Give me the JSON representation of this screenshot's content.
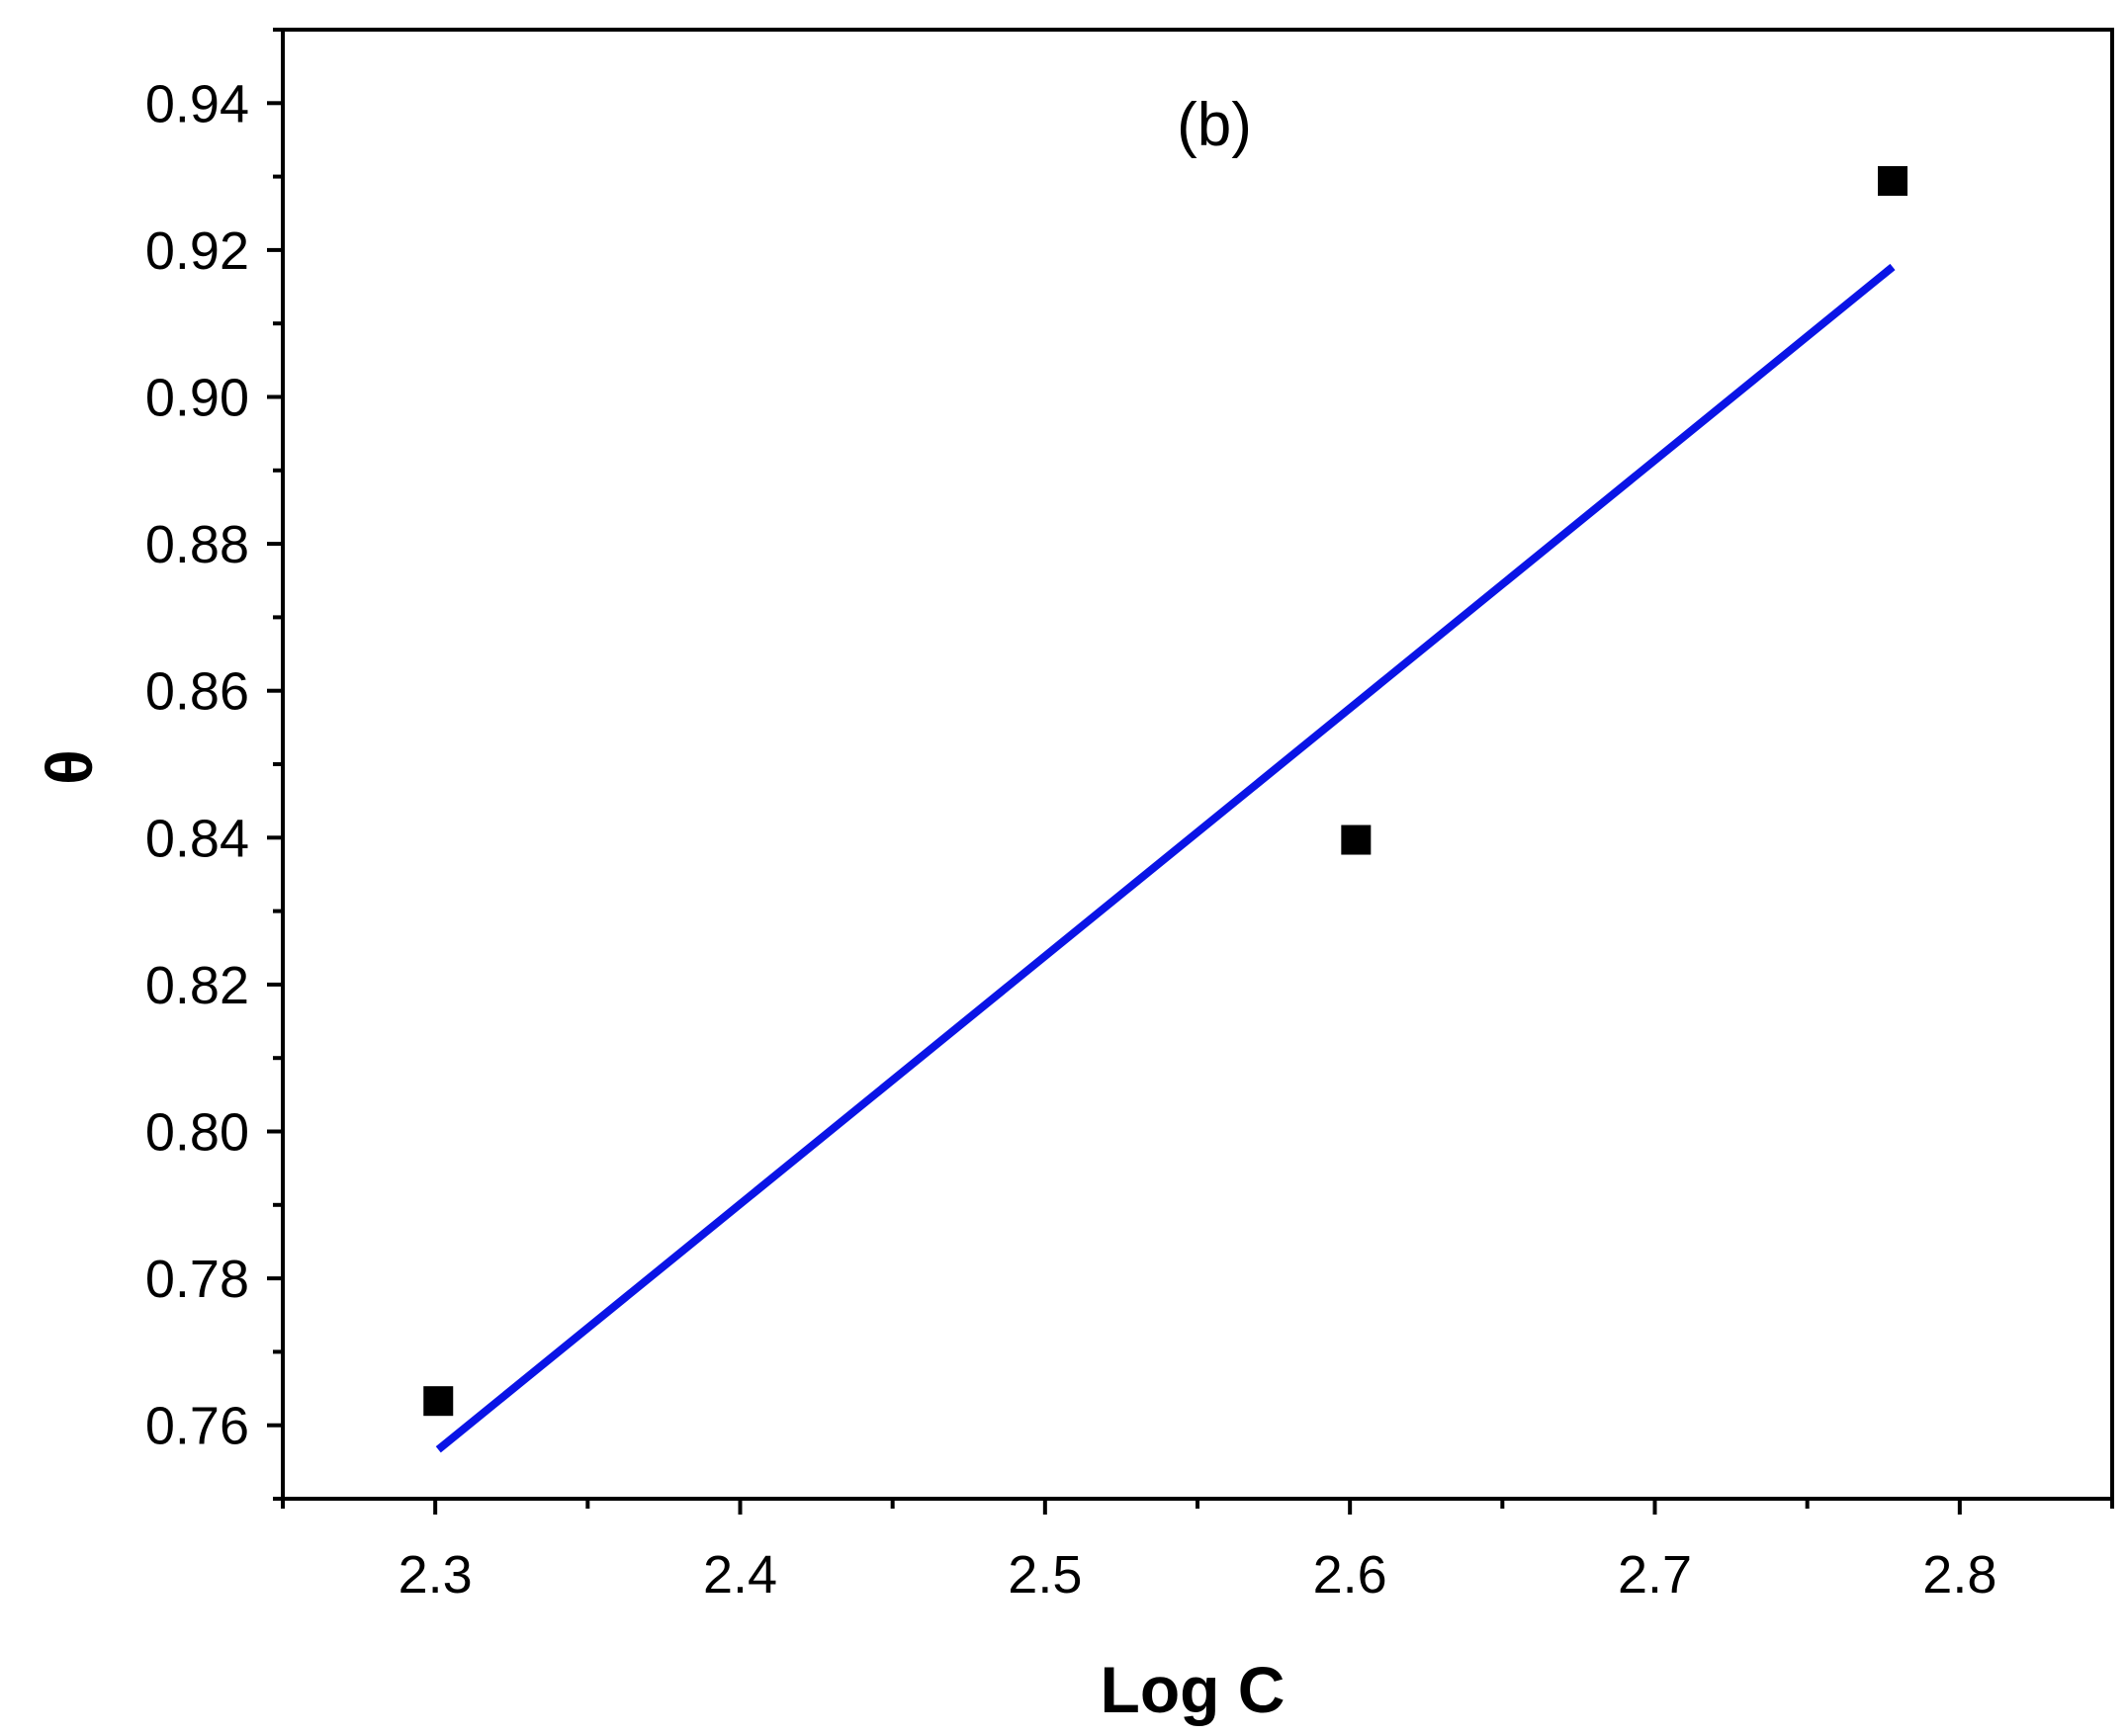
{
  "chart_data": {
    "type": "scatter",
    "annotation": "(b)",
    "xlabel": "Log C",
    "ylabel": "θ",
    "xlim": [
      2.25,
      2.85
    ],
    "ylim": [
      0.75,
      0.95
    ],
    "x_ticks": [
      "2.3",
      "2.4",
      "2.5",
      "2.6",
      "2.7",
      "2.8"
    ],
    "y_ticks": [
      "0.76",
      "0.78",
      "0.80",
      "0.82",
      "0.84",
      "0.86",
      "0.88",
      "0.90",
      "0.92",
      "0.94"
    ],
    "grid": false,
    "series": [
      {
        "marker": "square",
        "color": "#000000",
        "x": [
          2.301,
          2.602,
          2.778
        ],
        "y": [
          0.7633,
          0.8397,
          0.9294
        ]
      }
    ],
    "fit_line": {
      "color": "#0a14e6",
      "x": [
        2.301,
        2.778
      ],
      "y": [
        0.7567,
        0.9177
      ]
    }
  }
}
